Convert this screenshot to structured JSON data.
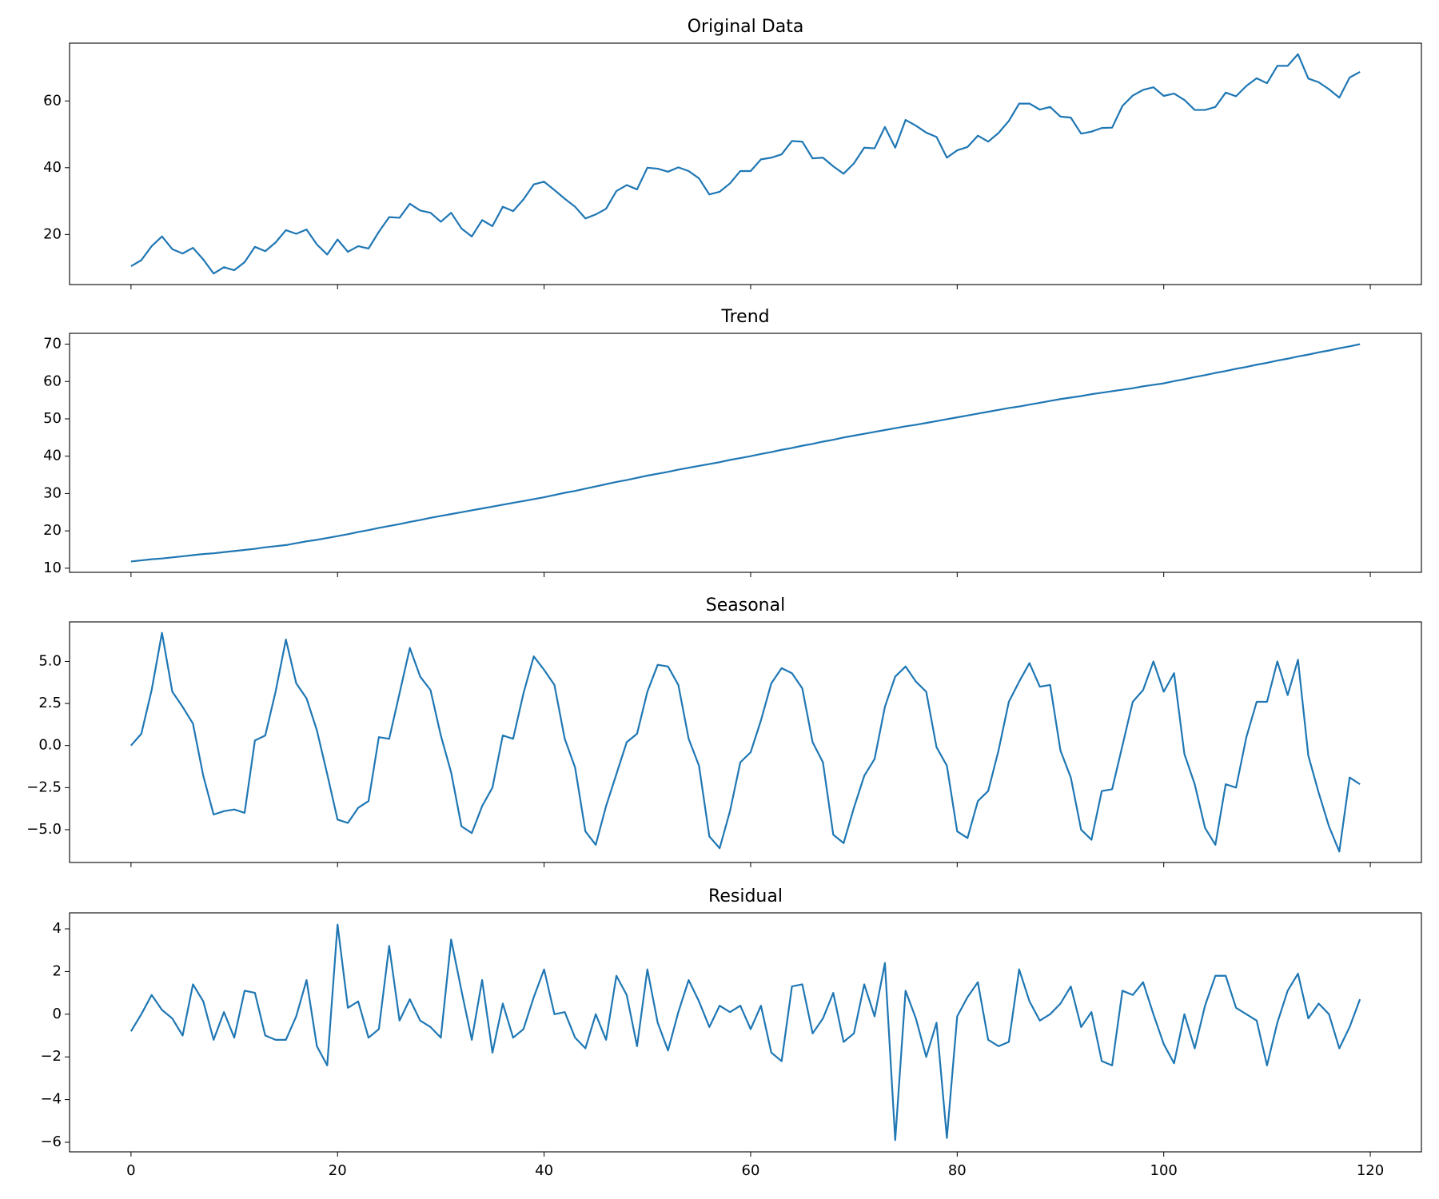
{
  "chart_data": [
    {
      "type": "line",
      "title": "Original Data",
      "color": "#1f77b4",
      "x": [
        0,
        1,
        2,
        3,
        4,
        5,
        6,
        7,
        8,
        9,
        10,
        11,
        12,
        13,
        14,
        15,
        16,
        17,
        18,
        19,
        20,
        21,
        22,
        23,
        24,
        25,
        26,
        27,
        28,
        29,
        30,
        31,
        32,
        33,
        34,
        35,
        36,
        37,
        38,
        39,
        40,
        41,
        42,
        43,
        44,
        45,
        46,
        47,
        48,
        49,
        50,
        51,
        52,
        53,
        54,
        55,
        56,
        57,
        58,
        59,
        60,
        61,
        62,
        63,
        64,
        65,
        66,
        67,
        68,
        69,
        70,
        71,
        72,
        73,
        74,
        75,
        76,
        77,
        78,
        79,
        80,
        81,
        82,
        83,
        84,
        85,
        86,
        87,
        88,
        89,
        90,
        91,
        92,
        93,
        94,
        95,
        96,
        97,
        98,
        99,
        100,
        101,
        102,
        103,
        104,
        105,
        106,
        107,
        108,
        109,
        110,
        111,
        112,
        113,
        114,
        115,
        116,
        117,
        118,
        119
      ],
      "values": [
        10.5,
        12.3,
        16.5,
        19.4,
        15.6,
        14.3,
        16,
        12.5,
        8.3,
        10.2,
        9.3,
        11.7,
        16.3,
        15,
        17.6,
        21.3,
        20.2,
        21.5,
        17,
        14,
        18.5,
        14.8,
        16.5,
        15.8,
        20.8,
        25.2,
        25,
        29.2,
        27.2,
        26.5,
        23.8,
        26.5,
        21.8,
        19.4,
        24.3,
        22.5,
        28.3,
        27,
        30.5,
        35,
        35.8,
        33.3,
        30.7,
        28.3,
        24.8,
        26,
        27.7,
        33,
        34.8,
        33.5,
        40,
        39.7,
        38.8,
        40.1,
        39,
        36.8,
        32,
        32.8,
        35.3,
        39,
        39,
        42.5,
        43,
        44,
        48,
        47.8,
        42.8,
        43,
        40.4,
        38.2,
        41.3,
        46,
        45.8,
        52.2,
        46,
        54.3,
        52.6,
        50.5,
        49.2,
        43,
        45.2,
        46.2,
        49.6,
        47.8,
        50.4,
        54,
        59.2,
        59.2,
        57.4,
        58.2,
        55.3,
        55,
        50.2,
        50.8,
        51.9,
        52,
        58.5,
        61.6,
        63.3,
        64.1,
        61.5,
        62.2,
        60.3,
        57.3,
        57.3,
        58.2,
        62.5,
        61.4,
        64.5,
        66.8,
        65.3,
        70.5,
        70.5,
        74,
        66.7,
        65.6,
        63.5,
        61,
        67,
        68.7
      ],
      "xlim": [
        -5.95,
        124.95
      ],
      "xticks": [
        0,
        20,
        40,
        60,
        80,
        100,
        120
      ],
      "ylim": [
        5,
        77.3
      ],
      "yticks": [
        20,
        40,
        60
      ]
    },
    {
      "type": "line",
      "title": "Trend",
      "color": "#1f77b4",
      "x": [
        0,
        1,
        2,
        3,
        4,
        5,
        6,
        7,
        8,
        9,
        10,
        11,
        12,
        13,
        14,
        15,
        16,
        17,
        18,
        19,
        20,
        21,
        22,
        23,
        24,
        25,
        26,
        27,
        28,
        29,
        30,
        31,
        32,
        33,
        34,
        35,
        36,
        37,
        38,
        39,
        40,
        41,
        42,
        43,
        44,
        45,
        46,
        47,
        48,
        49,
        50,
        51,
        52,
        53,
        54,
        55,
        56,
        57,
        58,
        59,
        60,
        61,
        62,
        63,
        64,
        65,
        66,
        67,
        68,
        69,
        70,
        71,
        72,
        73,
        74,
        75,
        76,
        77,
        78,
        79,
        80,
        81,
        82,
        83,
        84,
        85,
        86,
        87,
        88,
        89,
        90,
        91,
        92,
        93,
        94,
        95,
        96,
        97,
        98,
        99,
        100,
        101,
        102,
        103,
        104,
        105,
        106,
        107,
        108,
        109,
        110,
        111,
        112,
        113,
        114,
        115,
        116,
        117,
        118,
        119
      ],
      "values": [
        11.8,
        12.1,
        12.4,
        12.6,
        12.9,
        13.2,
        13.5,
        13.8,
        14.0,
        14.3,
        14.6,
        14.9,
        15.2,
        15.6,
        15.9,
        16.2,
        16.7,
        17.2,
        17.6,
        18.1,
        18.6,
        19.1,
        19.7,
        20.2,
        20.8,
        21.3,
        21.8,
        22.4,
        22.9,
        23.5,
        24.0,
        24.5,
        25.0,
        25.5,
        26.0,
        26.5,
        27.0,
        27.5,
        28.0,
        28.5,
        29.0,
        29.6,
        30.2,
        30.7,
        31.3,
        31.9,
        32.5,
        33.1,
        33.6,
        34.2,
        34.8,
        35.3,
        35.8,
        36.4,
        36.9,
        37.4,
        37.9,
        38.4,
        39.0,
        39.5,
        40.0,
        40.6,
        41.1,
        41.7,
        42.2,
        42.8,
        43.3,
        43.9,
        44.4,
        45.0,
        45.5,
        46.0,
        46.5,
        47.0,
        47.5,
        48.0,
        48.4,
        48.9,
        49.4,
        49.9,
        50.4,
        50.9,
        51.4,
        51.9,
        52.4,
        52.9,
        53.3,
        53.8,
        54.3,
        54.8,
        55.3,
        55.7,
        56.1,
        56.6,
        57.0,
        57.4,
        57.8,
        58.2,
        58.7,
        59.1,
        59.5,
        60.1,
        60.6,
        61.2,
        61.7,
        62.3,
        62.8,
        63.4,
        63.9,
        64.5,
        65.0,
        65.6,
        66.1,
        66.7,
        67.2,
        67.8,
        68.3,
        68.9,
        69.4,
        70.0
      ],
      "xlim": [
        -5.95,
        124.95
      ],
      "xticks": [
        0,
        20,
        40,
        60,
        80,
        100,
        120
      ],
      "ylim": [
        8.9,
        72.9
      ],
      "yticks": [
        10,
        20,
        30,
        40,
        50,
        60,
        70
      ]
    },
    {
      "type": "line",
      "title": "Seasonal",
      "color": "#1f77b4",
      "x": [
        0,
        1,
        2,
        3,
        4,
        5,
        6,
        7,
        8,
        9,
        10,
        11,
        12,
        13,
        14,
        15,
        16,
        17,
        18,
        19,
        20,
        21,
        22,
        23,
        24,
        25,
        26,
        27,
        28,
        29,
        30,
        31,
        32,
        33,
        34,
        35,
        36,
        37,
        38,
        39,
        40,
        41,
        42,
        43,
        44,
        45,
        46,
        47,
        48,
        49,
        50,
        51,
        52,
        53,
        54,
        55,
        56,
        57,
        58,
        59,
        60,
        61,
        62,
        63,
        64,
        65,
        66,
        67,
        68,
        69,
        70,
        71,
        72,
        73,
        74,
        75,
        76,
        77,
        78,
        79,
        80,
        81,
        82,
        83,
        84,
        85,
        86,
        87,
        88,
        89,
        90,
        91,
        92,
        93,
        94,
        95,
        96,
        97,
        98,
        99,
        100,
        101,
        102,
        103,
        104,
        105,
        106,
        107,
        108,
        109,
        110,
        111,
        112,
        113,
        114,
        115,
        116,
        117,
        118,
        119
      ],
      "values": [
        0,
        0.7,
        3.3,
        6.7,
        3.2,
        2.3,
        1.3,
        -1.8,
        -4.1,
        -3.9,
        -3.8,
        -4.0,
        0.3,
        0.6,
        3.2,
        6.3,
        3.7,
        2.8,
        0.9,
        -1.7,
        -4.4,
        -4.6,
        -3.7,
        -3.3,
        0.5,
        0.4,
        3.1,
        5.8,
        4.1,
        3.3,
        0.6,
        -1.6,
        -4.8,
        -5.2,
        -3.6,
        -2.5,
        0.6,
        0.4,
        3.1,
        5.3,
        4.5,
        3.6,
        0.4,
        -1.3,
        -5.1,
        -5.9,
        -3.6,
        -1.7,
        0.2,
        0.7,
        3.2,
        4.8,
        4.7,
        3.6,
        0.4,
        -1.2,
        -5.4,
        -6.1,
        -3.9,
        -1.0,
        -0.4,
        1.5,
        3.7,
        4.6,
        4.3,
        3.4,
        0.2,
        -1.0,
        -5.3,
        -5.8,
        -3.7,
        -1.8,
        -0.8,
        2.3,
        4.1,
        4.7,
        3.8,
        3.2,
        -0.1,
        -1.2,
        -5.1,
        -5.5,
        -3.3,
        -2.7,
        -0.3,
        2.6,
        3.8,
        4.9,
        3.5,
        3.6,
        -0.3,
        -1.9,
        -5.0,
        -5.6,
        -2.7,
        -2.6,
        0,
        2.6,
        3.3,
        5.0,
        3.2,
        4.3,
        -0.5,
        -2.3,
        -4.9,
        -5.9,
        -2.3,
        -2.5,
        0.5,
        2.6,
        2.6,
        5.0,
        3.0,
        5.1,
        -0.6,
        -2.8,
        -4.8,
        -6.3,
        -1.9,
        -2.3
      ],
      "xlim": [
        -5.95,
        124.95
      ],
      "xticks": [
        0,
        20,
        40,
        60,
        80,
        100,
        120
      ],
      "ylim": [
        -6.95,
        7.35
      ],
      "yticks": [
        {
          "value": -5,
          "label": "−5.0"
        },
        {
          "value": -2.5,
          "label": "−2.5"
        },
        {
          "value": 0,
          "label": "0.0"
        },
        {
          "value": 2.5,
          "label": "2.5"
        },
        {
          "value": 5,
          "label": "5.0"
        }
      ]
    },
    {
      "type": "line",
      "title": "Residual",
      "color": "#1f77b4",
      "x": [
        0,
        1,
        2,
        3,
        4,
        5,
        6,
        7,
        8,
        9,
        10,
        11,
        12,
        13,
        14,
        15,
        16,
        17,
        18,
        19,
        20,
        21,
        22,
        23,
        24,
        25,
        26,
        27,
        28,
        29,
        30,
        31,
        32,
        33,
        34,
        35,
        36,
        37,
        38,
        39,
        40,
        41,
        42,
        43,
        44,
        45,
        46,
        47,
        48,
        49,
        50,
        51,
        52,
        53,
        54,
        55,
        56,
        57,
        58,
        59,
        60,
        61,
        62,
        63,
        64,
        65,
        66,
        67,
        68,
        69,
        70,
        71,
        72,
        73,
        74,
        75,
        76,
        77,
        78,
        79,
        80,
        81,
        82,
        83,
        84,
        85,
        86,
        87,
        88,
        89,
        90,
        91,
        92,
        93,
        94,
        95,
        96,
        97,
        98,
        99,
        100,
        101,
        102,
        103,
        104,
        105,
        106,
        107,
        108,
        109,
        110,
        111,
        112,
        113,
        114,
        115,
        116,
        117,
        118,
        119
      ],
      "values": [
        -0.8,
        0,
        0.9,
        0.2,
        -0.2,
        -1.0,
        1.4,
        0.6,
        -1.2,
        0.1,
        -1.1,
        1.1,
        1.0,
        -1.0,
        -1.2,
        -1.2,
        -0.1,
        1.6,
        -1.5,
        -2.4,
        4.2,
        0.3,
        0.6,
        -1.1,
        -0.7,
        3.2,
        -0.3,
        0.7,
        -0.3,
        -0.6,
        -1.1,
        3.5,
        1.1,
        -1.2,
        1.6,
        -1.8,
        0.5,
        -1.1,
        -0.7,
        0.8,
        2.1,
        0,
        0.1,
        -1.1,
        -1.6,
        0,
        -1.2,
        1.8,
        0.9,
        -1.5,
        2.1,
        -0.4,
        -1.7,
        0.1,
        1.6,
        0.6,
        -0.6,
        0.4,
        0.1,
        0.4,
        -0.7,
        0.4,
        -1.8,
        -2.2,
        1.3,
        1.4,
        -0.9,
        -0.2,
        1.0,
        -1.3,
        -0.9,
        1.4,
        -0.1,
        2.4,
        -5.9,
        1.1,
        -0.2,
        -2.0,
        -0.4,
        -5.8,
        -0.1,
        0.8,
        1.5,
        -1.2,
        -1.5,
        -1.3,
        2.1,
        0.6,
        -0.3,
        0,
        0.5,
        1.3,
        -0.6,
        0.1,
        -2.2,
        -2.4,
        1.1,
        0.9,
        1.5,
        0,
        -1.4,
        -2.3,
        0,
        -1.6,
        0.4,
        1.8,
        1.8,
        0.3,
        0,
        -0.3,
        -2.4,
        -0.4,
        1.1,
        1.9,
        -0.2,
        0.5,
        0,
        -1.6,
        -0.6,
        0.7
      ],
      "xlim": [
        -5.95,
        124.95
      ],
      "xticks": [
        0,
        20,
        40,
        60,
        80,
        100,
        120
      ],
      "ylim": [
        -6.45,
        4.75
      ],
      "yticks": [
        {
          "value": -6,
          "label": "−6"
        },
        {
          "value": -4,
          "label": "−4"
        },
        {
          "value": -2,
          "label": "−2"
        },
        0,
        2,
        4
      ]
    }
  ]
}
